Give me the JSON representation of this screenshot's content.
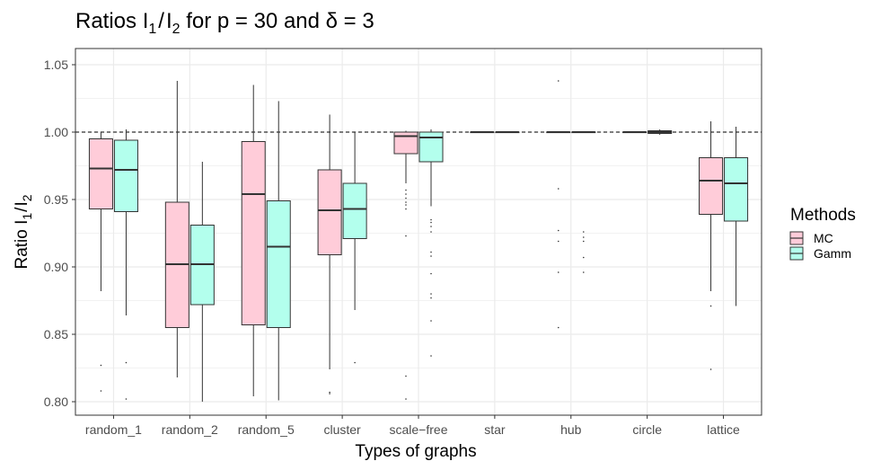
{
  "chart_data": {
    "type": "boxplot",
    "title": {
      "prefix": "Ratios I",
      "sub1": "1",
      "slash": "/",
      "mid": "I",
      "sub2": "2",
      "suffix": " for p = 30 and δ = 3"
    },
    "xlabel": "Types of graphs",
    "ylabel": {
      "prefix": "Ratio I",
      "sub1": "1",
      "slash": "/",
      "mid": "I",
      "sub2": "2"
    },
    "ylim": [
      0.79,
      1.062
    ],
    "yticks": [
      0.8,
      0.85,
      0.9,
      0.95,
      1.0,
      1.05
    ],
    "ytick_labels": [
      "0.80",
      "0.85",
      "0.90",
      "0.95",
      "1.00",
      "1.05"
    ],
    "reference_line": 1.0,
    "categories": [
      "random_1",
      "random_2",
      "random_5",
      "cluster",
      "scale−free",
      "star",
      "hub",
      "circle",
      "lattice"
    ],
    "legend": {
      "title": "Methods",
      "position": "right"
    },
    "series": [
      {
        "name": "MC",
        "color": "#FFCCD9",
        "boxes": [
          {
            "whisker_low": 0.882,
            "q1": 0.943,
            "median": 0.973,
            "q3": 0.995,
            "whisker_high": 1.0,
            "outliers": [
              0.827,
              0.808
            ]
          },
          {
            "whisker_low": 0.818,
            "q1": 0.855,
            "median": 0.902,
            "q3": 0.948,
            "whisker_high": 1.038,
            "outliers": []
          },
          {
            "whisker_low": 0.804,
            "q1": 0.857,
            "median": 0.954,
            "q3": 0.993,
            "whisker_high": 1.035,
            "outliers": []
          },
          {
            "whisker_low": 0.824,
            "q1": 0.909,
            "median": 0.942,
            "q3": 0.972,
            "whisker_high": 1.013,
            "outliers": [
              0.807,
              0.806
            ]
          },
          {
            "whisker_low": 0.962,
            "q1": 0.984,
            "median": 0.997,
            "q3": 1.0,
            "whisker_high": 1.001,
            "outliers": [
              0.957,
              0.954,
              0.951,
              0.948,
              0.946,
              0.943,
              0.923,
              0.819,
              0.802
            ]
          },
          {
            "whisker_low": 1.0,
            "q1": 1.0,
            "median": 1.0,
            "q3": 1.0,
            "whisker_high": 1.0,
            "outliers": []
          },
          {
            "whisker_low": 1.0,
            "q1": 1.0,
            "median": 1.0,
            "q3": 1.0,
            "whisker_high": 1.0,
            "outliers": [
              1.038,
              0.958,
              0.927,
              0.919,
              0.896,
              0.855
            ]
          },
          {
            "whisker_low": 1.0,
            "q1": 1.0,
            "median": 1.0,
            "q3": 1.0,
            "whisker_high": 1.0,
            "outliers": []
          },
          {
            "whisker_low": 0.882,
            "q1": 0.939,
            "median": 0.964,
            "q3": 0.981,
            "whisker_high": 1.008,
            "outliers": [
              0.871,
              0.824
            ]
          }
        ]
      },
      {
        "name": "Gamm",
        "color": "#B3FFED",
        "boxes": [
          {
            "whisker_low": 0.864,
            "q1": 0.941,
            "median": 0.972,
            "q3": 0.994,
            "whisker_high": 1.002,
            "outliers": [
              0.829,
              0.802
            ]
          },
          {
            "whisker_low": 0.8,
            "q1": 0.872,
            "median": 0.902,
            "q3": 0.931,
            "whisker_high": 0.978,
            "outliers": []
          },
          {
            "whisker_low": 0.801,
            "q1": 0.855,
            "median": 0.915,
            "q3": 0.949,
            "whisker_high": 1.023,
            "outliers": []
          },
          {
            "whisker_low": 0.868,
            "q1": 0.921,
            "median": 0.943,
            "q3": 0.962,
            "whisker_high": 1.0,
            "outliers": [
              0.829
            ]
          },
          {
            "whisker_low": 0.945,
            "q1": 0.978,
            "median": 0.996,
            "q3": 1.0,
            "whisker_high": 1.002,
            "outliers": [
              0.935,
              0.933,
              0.93,
              0.926,
              0.911,
              0.908,
              0.895,
              0.88,
              0.877,
              0.86,
              0.834
            ]
          },
          {
            "whisker_low": 1.0,
            "q1": 1.0,
            "median": 1.0,
            "q3": 1.0,
            "whisker_high": 1.0,
            "outliers": []
          },
          {
            "whisker_low": 1.0,
            "q1": 1.0,
            "median": 1.0,
            "q3": 1.0,
            "whisker_high": 1.0,
            "outliers": [
              0.926,
              0.922,
              0.919,
              0.907,
              0.896
            ]
          },
          {
            "whisker_low": 0.998,
            "q1": 0.999,
            "median": 1.0,
            "q3": 1.001,
            "whisker_high": 1.002,
            "outliers": []
          },
          {
            "whisker_low": 0.871,
            "q1": 0.934,
            "median": 0.962,
            "q3": 0.981,
            "whisker_high": 1.004,
            "outliers": []
          }
        ]
      }
    ]
  }
}
